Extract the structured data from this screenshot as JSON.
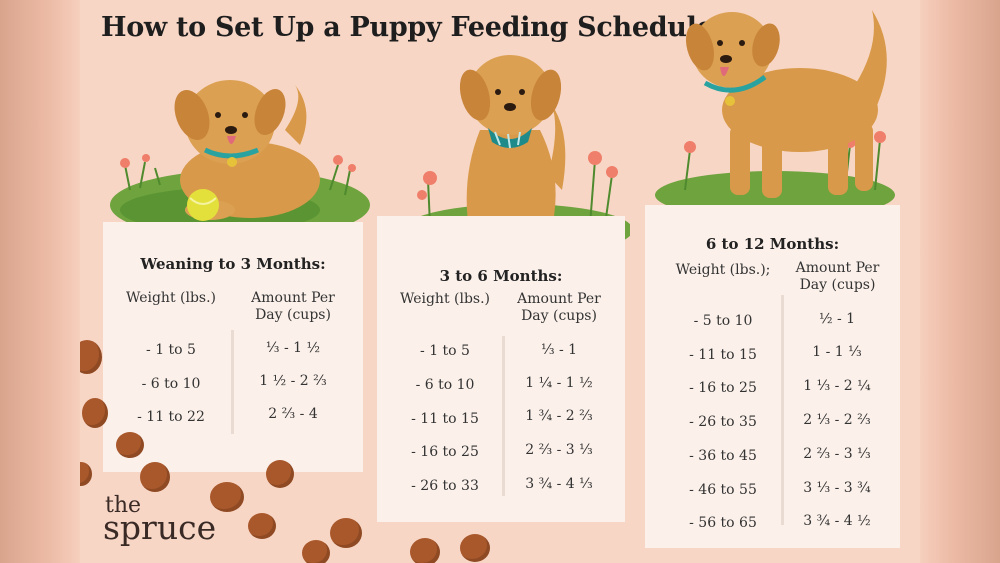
{
  "title": "How to Set Up a Puppy Feeding Schedule",
  "logo": {
    "line1": "the",
    "line2": "spruce"
  },
  "colors": {
    "background": "#f8d6c6",
    "card": "#fbf0ea",
    "dog": "#d89a4a",
    "grass": "#6ea33e",
    "kibble": "#a9582b"
  },
  "cards": [
    {
      "title": "Weaning to 3 Months:",
      "headers": [
        "Weight (lbs.)",
        "Amount Per Day (cups)"
      ],
      "rows": [
        [
          "- 1 to 5",
          "⅓ - 1 ½"
        ],
        [
          "- 6 to 10",
          "1 ½ - 2 ⅔"
        ],
        [
          "- 11 to 22",
          "2 ⅔ - 4"
        ]
      ]
    },
    {
      "title": "3 to 6 Months:",
      "headers": [
        "Weight (lbs.)",
        "Amount Per Day (cups)"
      ],
      "rows": [
        [
          "- 1 to 5",
          "⅓ - 1"
        ],
        [
          "- 6 to 10",
          "1 ¼ - 1 ½"
        ],
        [
          "- 11 to 15",
          "1 ¾ - 2 ⅔"
        ],
        [
          "- 16 to 25",
          "2 ⅔ - 3 ⅓"
        ],
        [
          "- 26 to 33",
          "3 ¾ - 4 ⅓"
        ]
      ]
    },
    {
      "title": "6 to 12 Months:",
      "headers": [
        "Weight (lbs.);",
        "Amount Per Day (cups)"
      ],
      "rows": [
        [
          "- 5 to 10",
          "½ - 1"
        ],
        [
          "- 11 to 15",
          "1 - 1 ⅓"
        ],
        [
          "- 16 to 25",
          "1 ⅓ - 2 ¼"
        ],
        [
          "- 26 to 35",
          "2 ⅓ - 2 ⅔"
        ],
        [
          "- 36 to 45",
          "2 ⅔ - 3 ⅓"
        ],
        [
          "- 46 to 55",
          "3 ⅓ - 3 ¾"
        ],
        [
          "- 56 to 65",
          "3 ¾ - 4 ½"
        ]
      ]
    }
  ]
}
